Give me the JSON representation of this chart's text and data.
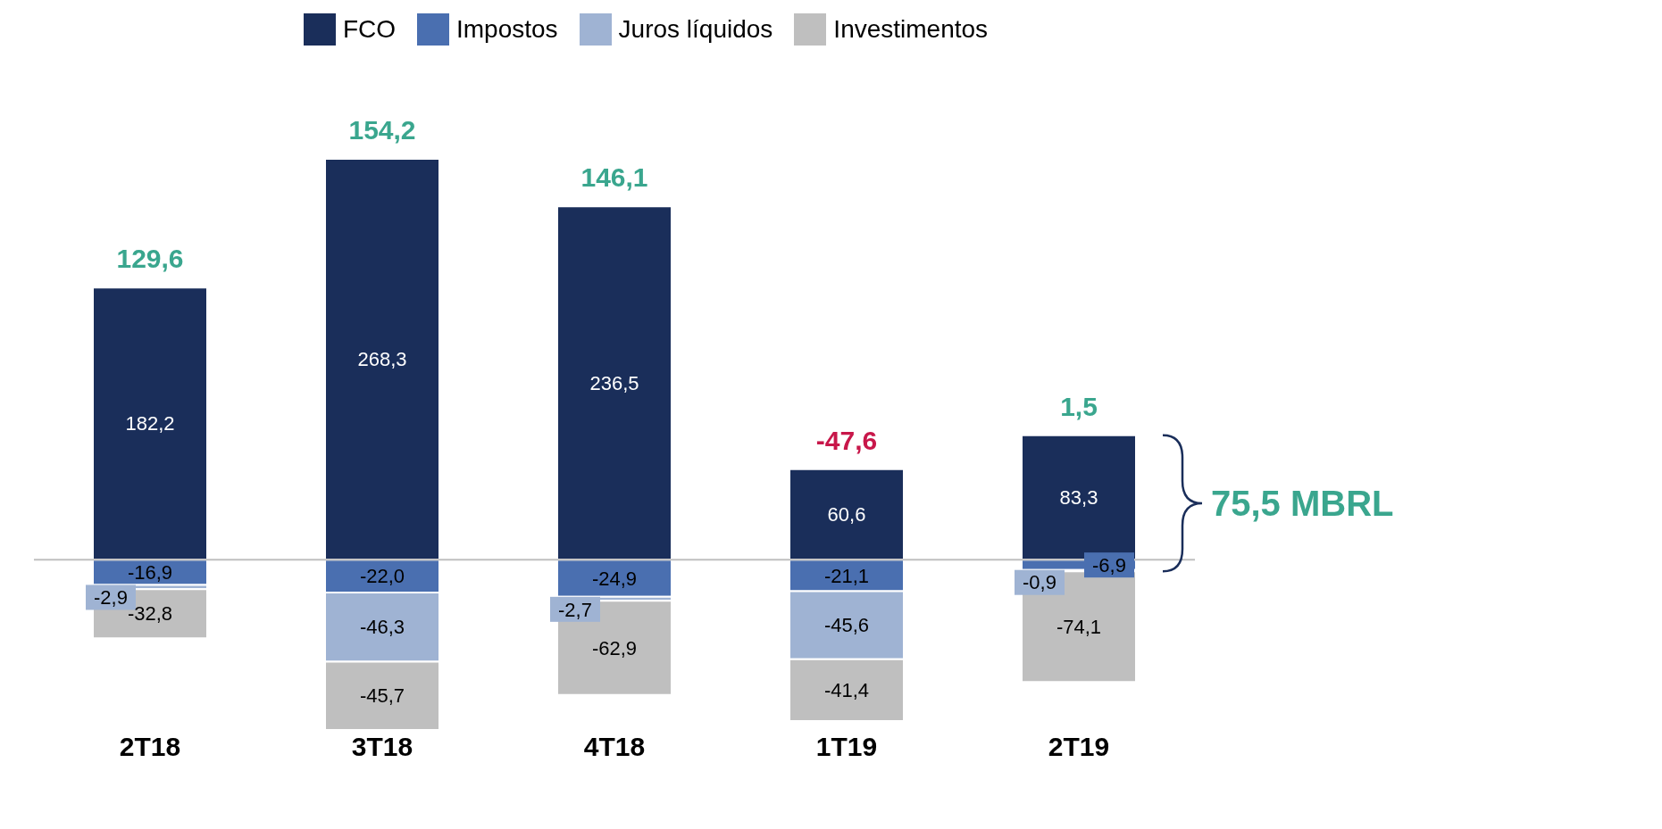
{
  "chart_data": {
    "type": "bar",
    "stacked": true,
    "categories": [
      "2T18",
      "3T18",
      "4T18",
      "1T19",
      "2T19"
    ],
    "series": [
      {
        "name": "FCO",
        "color": "#1a2e5a",
        "values": [
          182.2,
          268.3,
          236.5,
          60.6,
          83.3
        ],
        "value_labels": [
          "182,2",
          "268,3",
          "236,5",
          "60,6",
          "83,3"
        ]
      },
      {
        "name": "Impostos",
        "color": "#4a6fb0",
        "values": [
          -16.9,
          -22.0,
          -24.9,
          -21.1,
          -6.9
        ],
        "value_labels": [
          "-16,9",
          "-22,0",
          "-24,9",
          "-21,1",
          "-6,9"
        ]
      },
      {
        "name": "Juros líquidos",
        "color": "#9fb3d3",
        "values": [
          -2.9,
          -46.3,
          -2.7,
          -45.6,
          -0.9
        ],
        "value_labels": [
          "-2,9",
          "-46,3",
          "-2,7",
          "-45,6",
          "-0,9"
        ]
      },
      {
        "name": "Investimentos",
        "color": "#bfbfbf",
        "values": [
          -32.8,
          -45.7,
          -62.9,
          -41.4,
          -74.1
        ],
        "value_labels": [
          "-32,8",
          "-45,7",
          "-62,9",
          "-41,4",
          "-74,1"
        ]
      }
    ],
    "totals": [
      "129,6",
      "154,2",
      "146,1",
      "-47,6",
      "1,5"
    ],
    "annotations": [
      "75,5 MBRL"
    ],
    "ref_lines": [
      {
        "axis": "y",
        "value": 0,
        "color": "#bfbfbf"
      }
    ],
    "tick_labels": "x",
    "legend": "top"
  }
}
